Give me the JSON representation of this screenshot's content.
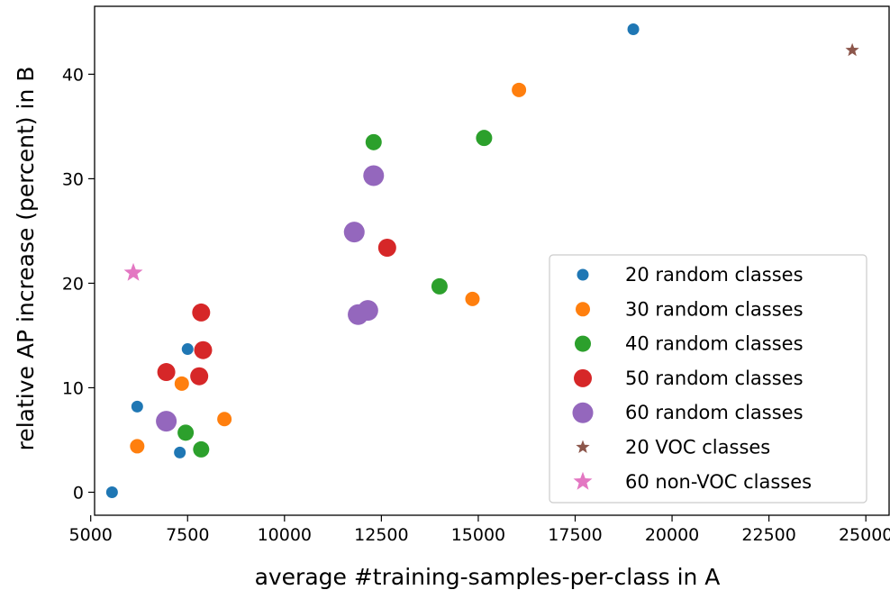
{
  "chart_data": {
    "type": "scatter",
    "title": "",
    "xlabel": "average #training-samples-per-class in A",
    "ylabel": "relative AP increase (percent) in B",
    "xlim": [
      5100,
      25600
    ],
    "ylim": [
      -2.2,
      46.5
    ],
    "xticks": [
      5000,
      7500,
      10000,
      12500,
      15000,
      17500,
      20000,
      22500,
      25000
    ],
    "xtick_labels": [
      "5000",
      "7500",
      "10000",
      "12500",
      "15000",
      "17500",
      "20000",
      "22500",
      "25000"
    ],
    "yticks": [
      0,
      10,
      20,
      30,
      40
    ],
    "ytick_labels": [
      "0",
      "10",
      "20",
      "30",
      "40"
    ],
    "grid": false,
    "legend_position": "lower-right",
    "series": [
      {
        "name": "20 random classes",
        "color": "#1f77b4",
        "marker": "circle",
        "size": "small",
        "points": [
          [
            5550,
            0.0
          ],
          [
            7300,
            3.8
          ],
          [
            6200,
            8.2
          ],
          [
            7500,
            13.7
          ],
          [
            19000,
            44.3
          ]
        ]
      },
      {
        "name": "30 random classes",
        "color": "#ff7f0e",
        "marker": "circle",
        "size": "medium",
        "points": [
          [
            6200,
            4.4
          ],
          [
            7350,
            10.4
          ],
          [
            8450,
            7.0
          ],
          [
            14850,
            18.5
          ],
          [
            16050,
            38.5
          ]
        ]
      },
      {
        "name": "40 random classes",
        "color": "#2ca02c",
        "marker": "circle",
        "size": "medium-large",
        "points": [
          [
            7450,
            5.7
          ],
          [
            7850,
            4.1
          ],
          [
            12300,
            33.5
          ],
          [
            14000,
            19.7
          ],
          [
            15150,
            33.9
          ]
        ]
      },
      {
        "name": "50 random classes",
        "color": "#d62728",
        "marker": "circle",
        "size": "large",
        "points": [
          [
            6950,
            11.5
          ],
          [
            7800,
            11.1
          ],
          [
            7850,
            17.2
          ],
          [
            7900,
            13.6
          ],
          [
            12650,
            23.4
          ]
        ]
      },
      {
        "name": "60 random classes",
        "color": "#9467bd",
        "marker": "circle",
        "size": "x-large",
        "points": [
          [
            6950,
            6.8
          ],
          [
            11800,
            24.9
          ],
          [
            11900,
            17.0
          ],
          [
            12150,
            17.4
          ],
          [
            12300,
            30.3
          ]
        ]
      },
      {
        "name": "20 VOC classes",
        "color": "#8c564b",
        "marker": "star",
        "size": "small",
        "points": [
          [
            24650,
            42.3
          ]
        ]
      },
      {
        "name": "60 non-VOC classes",
        "color": "#e377c2",
        "marker": "star",
        "size": "large",
        "points": [
          [
            6100,
            21.0
          ]
        ]
      }
    ]
  }
}
